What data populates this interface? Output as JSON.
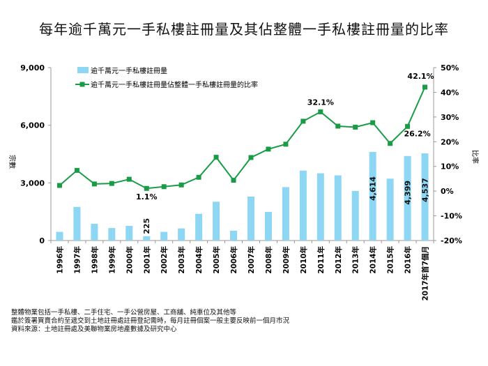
{
  "chart_data": {
    "type": "bar+line",
    "title": "每年逾千萬元一手私樓註冊量及其佔整體一手私樓註冊量的比率",
    "categories": [
      "1996年",
      "1997年",
      "1998年",
      "1999年",
      "2000年",
      "2001年",
      "2002年",
      "2003年",
      "2004年",
      "2005年",
      "2006年",
      "2007年",
      "2008年",
      "2009年",
      "2010年",
      "2011年",
      "2012年",
      "2013年",
      "2014年",
      "2015年",
      "2016年",
      "2017年首7個月"
    ],
    "series": [
      {
        "name": "逾千萬元一手私樓註冊量",
        "type": "bar",
        "axis": "left",
        "color": "#8dd6f4",
        "values": [
          450,
          1750,
          870,
          650,
          760,
          225,
          450,
          630,
          1390,
          2020,
          510,
          2290,
          1490,
          2780,
          3640,
          3500,
          3390,
          2580,
          4614,
          3220,
          4399,
          4537
        ]
      },
      {
        "name": "逾千萬元一手私樓註冊量佔整體一手私樓註冊量的比率",
        "type": "line",
        "axis": "right",
        "color": "#1a9c47",
        "values": [
          2.3,
          8.4,
          2.9,
          3.1,
          4.8,
          1.1,
          1.8,
          2.5,
          5.6,
          13.7,
          4.4,
          13.6,
          17.0,
          19.0,
          28.3,
          32.1,
          26.3,
          25.9,
          27.7,
          19.3,
          26.2,
          42.1
        ]
      }
    ],
    "bar_labels": {
      "5": "225",
      "18": "4,614",
      "20": "4,399",
      "21": "4,537"
    },
    "line_labels": {
      "5": "1.1%",
      "15": "32.1%",
      "20": "26.2%",
      "21": "42.1%"
    },
    "ylabel": "宗數",
    "y2label": "比率",
    "ylim": [
      0,
      9000
    ],
    "yticks": [
      "0",
      "3,000",
      "6,000",
      "9,000"
    ],
    "y2lim": [
      -20,
      50
    ],
    "y2ticks": [
      "-20%",
      "-10%",
      "0%",
      "10%",
      "20%",
      "30%",
      "40%",
      "50%"
    ],
    "legend": "top-left"
  },
  "notes": [
    "整體物業包括一手私樓、二手住宅、一手公營房屋、工商舖、純車位及其他等",
    "鑑於簽署買賣合約至遞交到土地註冊處註冊登記需時，每月註冊個案一般主要反映前一個月市況",
    "資料來源：土地註冊處及美聯物業房地產數據及研究中心"
  ]
}
